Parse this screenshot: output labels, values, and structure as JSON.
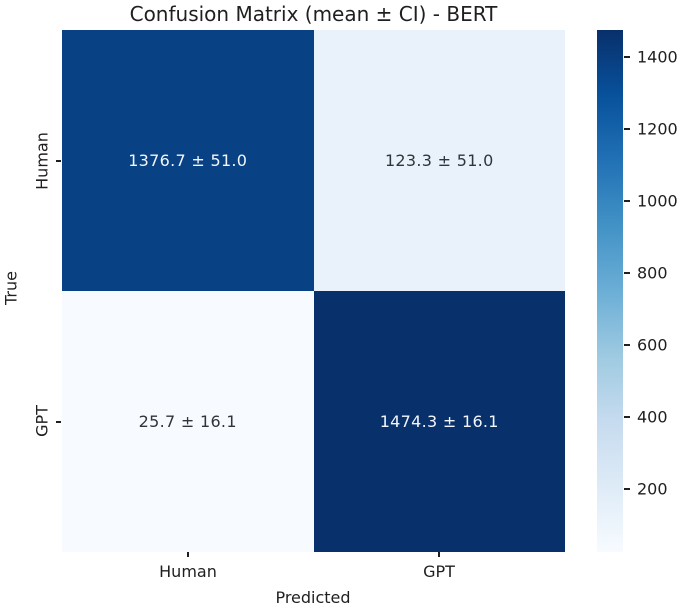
{
  "chart_data": {
    "type": "heatmap",
    "title": "Confusion Matrix (mean ± CI) - BERT",
    "xlabel": "Predicted",
    "ylabel": "True",
    "x_categories": [
      "Human",
      "GPT"
    ],
    "y_categories": [
      "Human",
      "GPT"
    ],
    "cells": [
      {
        "row": "Human",
        "col": "Human",
        "label": "1376.7 ± 51.0",
        "mean": 1376.7,
        "ci": 51.0,
        "color": "#084285",
        "text_color": "#f2f6fb"
      },
      {
        "row": "Human",
        "col": "GPT",
        "label": "123.3 ± 51.0",
        "mean": 123.3,
        "ci": 51.0,
        "color": "#e9f1fa",
        "text_color": "#30353a"
      },
      {
        "row": "GPT",
        "col": "Human",
        "label": "25.7 ± 16.1",
        "mean": 25.7,
        "ci": 16.1,
        "color": "#f7fbff",
        "text_color": "#30353a"
      },
      {
        "row": "GPT",
        "col": "GPT",
        "label": "1474.3 ± 16.1",
        "mean": 1474.3,
        "ci": 16.1,
        "color": "#08306b",
        "text_color": "#f2f6fb"
      }
    ],
    "colorbar": {
      "colormap": "Blues",
      "vmin": 25.7,
      "vmax": 1474.3,
      "ticks": [
        200,
        400,
        600,
        800,
        1000,
        1200,
        1400
      ],
      "gradient_stops": [
        "#f7fbff",
        "#deebf7",
        "#c6dbef",
        "#9ecae1",
        "#6baed6",
        "#4292c6",
        "#2171b5",
        "#08519c",
        "#08306b"
      ]
    },
    "layout": {
      "grid": false,
      "legend": false,
      "colorbar_position": "right"
    }
  }
}
